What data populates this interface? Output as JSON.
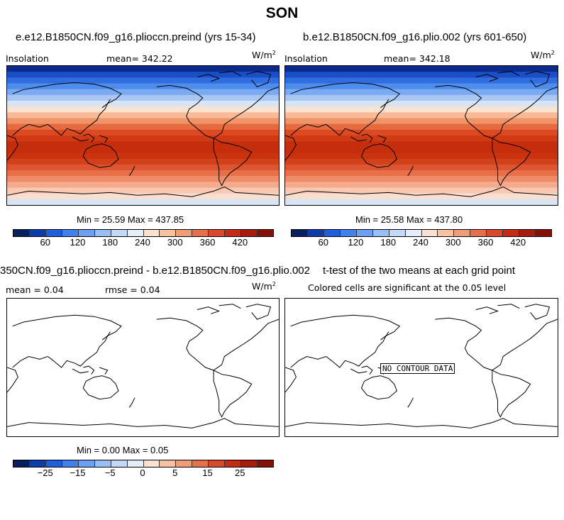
{
  "figure_title": "SON",
  "units": "W/m",
  "units_exp": "2",
  "panels": {
    "top_left": {
      "title": "e.e12.B1850CN.f09_g16.plioccn.preind (yrs 15-34)",
      "variable": "Insolation",
      "mean_text": "mean= 342.22",
      "minmax_text": "Min =  25.59 Max = 437.85"
    },
    "top_right": {
      "title": "b.e12.B1850CN.f09_g16.plio.002 (yrs 601-650)",
      "variable": "Insolation",
      "mean_text": "mean= 342.18",
      "minmax_text": "Min =  25.58 Max = 437.80"
    },
    "bottom_left": {
      "title": "350CN.f09_g16.plioccn.preind - b.e12.B1850CN.f09_g16.plio.002",
      "mean_text": "mean =   0.04",
      "rmse_text": "rmse =   0.04",
      "minmax_text": "Min =   0.00 Max =   0.05"
    },
    "bottom_right": {
      "title": "t-test of the two means at each grid point",
      "subtitle": "Colored cells are significant at the 0.05 level",
      "no_data_text": "NO CONTOUR DATA"
    }
  },
  "colorbar_top": {
    "colors": [
      "#08205e",
      "#0b3ea8",
      "#1e5fdc",
      "#3f82ee",
      "#6ba1f4",
      "#98bff7",
      "#c2d9f8",
      "#e4eef8",
      "#fbe1cf",
      "#f8c2a1",
      "#f09c74",
      "#e5714b",
      "#d94a2a",
      "#c32b14",
      "#a81c0c",
      "#861006"
    ],
    "ticks": [
      "60",
      "120",
      "180",
      "240",
      "300",
      "360",
      "420"
    ]
  },
  "colorbar_bottom": {
    "colors": [
      "#08205e",
      "#0b3ea8",
      "#1e5fdc",
      "#3f82ee",
      "#6ba1f4",
      "#98bff7",
      "#c2d9f8",
      "#e4eef8",
      "#fbe1cf",
      "#f8c2a1",
      "#f09c74",
      "#e5714b",
      "#d94a2a",
      "#c32b14",
      "#a81c0c",
      "#861006"
    ],
    "ticks": [
      "−25",
      "−15",
      "−5",
      "0",
      "5",
      "15",
      "25"
    ]
  },
  "insolation_bands": [
    "#0b2a8c",
    "#1a4fc8",
    "#2f6de0",
    "#4f8ded",
    "#7aaaf2",
    "#a9c6f4",
    "#d7e4f3",
    "#fbe2d0",
    "#f7bb98",
    "#ef9369",
    "#e66b41",
    "#dc4a22",
    "#d03a15",
    "#c42e0c",
    "#c42e0c",
    "#c9330f",
    "#d2401a",
    "#dd5530",
    "#e77049",
    "#ef8c68",
    "#f5ab8e",
    "#f9c9b1",
    "#f9dfd0",
    "#d7e4f3"
  ]
}
